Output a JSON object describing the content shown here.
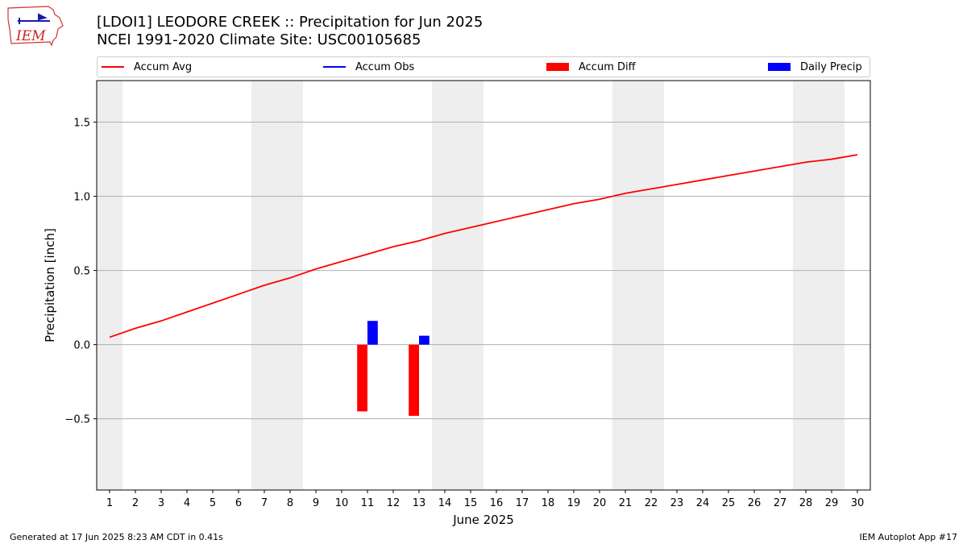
{
  "header": {
    "logo_text": "IEM",
    "title_line1": "[LDOI1] LEODORE CREEK :: Precipitation for Jun 2025",
    "title_line2": "NCEI 1991-2020 Climate Site: USC00105685"
  },
  "legend": {
    "items": [
      {
        "label": "Accum Avg",
        "kind": "line",
        "color": "#ff0000"
      },
      {
        "label": "Accum Obs",
        "kind": "line",
        "color": "#0000ff"
      },
      {
        "label": "Accum Diff",
        "kind": "box",
        "color": "#ff0000"
      },
      {
        "label": "Daily Precip",
        "kind": "box",
        "color": "#0000ff"
      }
    ]
  },
  "footer": {
    "left": "Generated at 17 Jun 2025 8:23 AM CDT in 0.41s",
    "right": "IEM Autoplot App #17"
  },
  "chart_data": {
    "type": "bar",
    "xlabel": "June 2025",
    "ylabel": "Precipitation [inch]",
    "x": [
      1,
      2,
      3,
      4,
      5,
      6,
      7,
      8,
      9,
      10,
      11,
      12,
      13,
      14,
      15,
      16,
      17,
      18,
      19,
      20,
      21,
      22,
      23,
      24,
      25,
      26,
      27,
      28,
      29,
      30
    ],
    "xlim": [
      0.5,
      30.5
    ],
    "ylim": [
      -0.98,
      1.78
    ],
    "yticks": [
      -0.5,
      0.0,
      0.5,
      1.0,
      1.5
    ],
    "ytick_labels": [
      "−0.5",
      "0.0",
      "0.5",
      "1.0",
      "1.5"
    ],
    "grid": "horizontal",
    "weekend_shading": [
      [
        0.5,
        1.5
      ],
      [
        6.5,
        8.5
      ],
      [
        13.5,
        15.5
      ],
      [
        20.5,
        22.5
      ],
      [
        27.5,
        29.5
      ]
    ],
    "shade_color": "#eeeeee",
    "series": [
      {
        "name": "Accum Avg",
        "kind": "line",
        "color": "#ff0000",
        "x": [
          1,
          2,
          3,
          4,
          5,
          6,
          7,
          8,
          9,
          10,
          11,
          12,
          13,
          14,
          15,
          16,
          17,
          18,
          19,
          20,
          21,
          22,
          23,
          24,
          25,
          26,
          27,
          28,
          29,
          30
        ],
        "values": [
          0.05,
          0.11,
          0.16,
          0.22,
          0.28,
          0.34,
          0.4,
          0.45,
          0.51,
          0.56,
          0.61,
          0.66,
          0.7,
          0.75,
          0.79,
          0.83,
          0.87,
          0.91,
          0.95,
          0.98,
          1.02,
          1.05,
          1.08,
          1.11,
          1.14,
          1.17,
          1.2,
          1.23,
          1.25,
          1.28
        ]
      },
      {
        "name": "Accum Diff",
        "kind": "bar",
        "color": "#ff0000",
        "offset": -0.2,
        "x": [
          11,
          13
        ],
        "values": [
          -0.45,
          -0.48
        ]
      },
      {
        "name": "Daily Precip",
        "kind": "bar",
        "color": "#0000ff",
        "offset": 0.2,
        "x": [
          11,
          13
        ],
        "values": [
          0.16,
          0.06
        ]
      }
    ]
  }
}
